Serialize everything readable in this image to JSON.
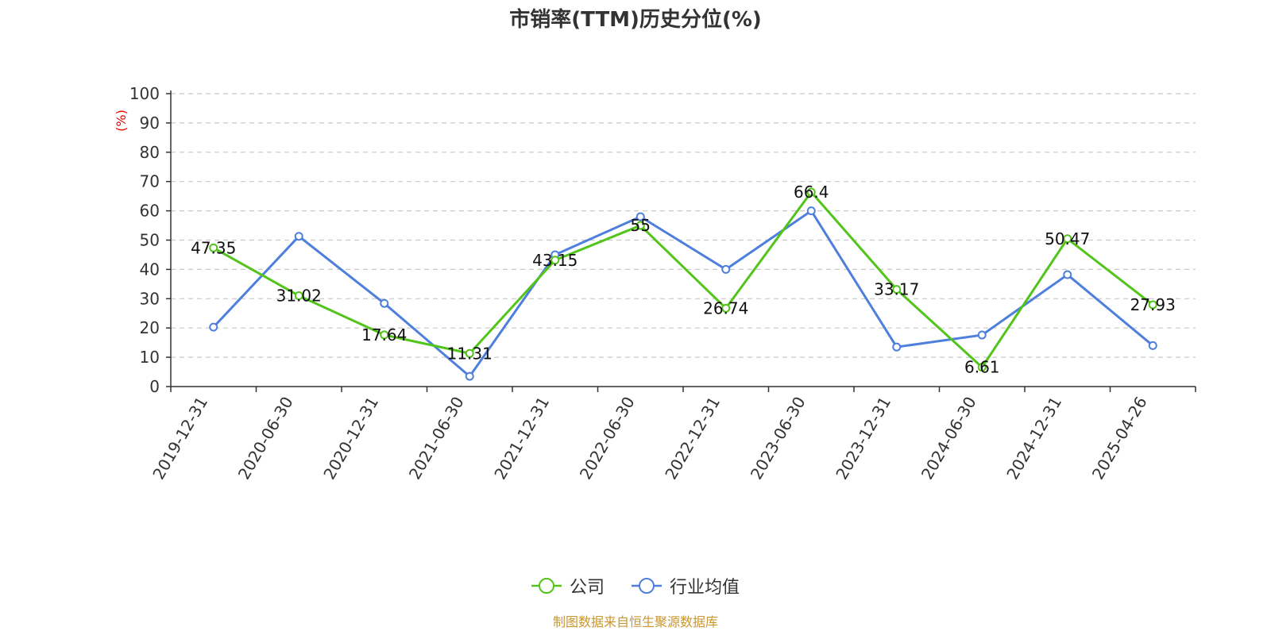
{
  "chart_data": {
    "type": "line",
    "title": "市销率(TTM)历史分位(%)",
    "ylabel": "(%)",
    "ylim": [
      0,
      100
    ],
    "yticks": [
      0,
      10,
      20,
      30,
      40,
      50,
      60,
      70,
      80,
      90,
      100
    ],
    "categories": [
      "2019-12-31",
      "2020-06-30",
      "2020-12-31",
      "2021-06-30",
      "2021-12-31",
      "2022-06-30",
      "2022-12-31",
      "2023-06-30",
      "2023-12-31",
      "2024-06-30",
      "2024-12-31",
      "2025-04-26"
    ],
    "grid": true,
    "legend_position": "bottom",
    "series": [
      {
        "name": "公司",
        "color": "#52c41a",
        "values": [
          47.35,
          31.02,
          17.64,
          11.31,
          43.15,
          55,
          26.74,
          66.4,
          33.17,
          6.61,
          50.47,
          27.93
        ],
        "labels": [
          "47.35",
          "31.02",
          "17.64",
          "11.31",
          "43.15",
          "55",
          "26.74",
          "66.4",
          "33.17",
          "6.61",
          "50.47",
          "27.93"
        ]
      },
      {
        "name": "行业均值",
        "color": "#4e7fdc",
        "values": [
          20.3,
          51.3,
          28.4,
          3.5,
          45.0,
          58.0,
          40.0,
          60.0,
          13.5,
          17.6,
          38.2,
          14.0
        ]
      }
    ]
  },
  "footer": {
    "source": "制图数据来自恒生聚源数据库"
  }
}
